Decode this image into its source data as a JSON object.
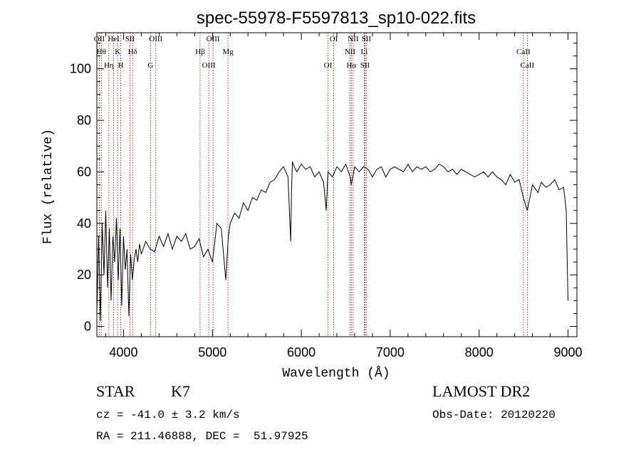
{
  "chart_data": {
    "type": "line",
    "title": "spec-55978-F5597813_sp10-022.fits",
    "xlabel": "Wavelength (Å)",
    "ylabel": "Flux (relative)",
    "xlim": [
      3700,
      9100
    ],
    "ylim": [
      -4,
      114
    ],
    "x_ticks": [
      4000,
      5000,
      6000,
      7000,
      8000,
      9000
    ],
    "y_ticks": [
      0,
      20,
      40,
      60,
      80,
      100
    ],
    "grid": false,
    "legend": "none",
    "line_color": "#000000",
    "marker_color": "#8b0000",
    "series": [
      {
        "x": [
          3700,
          3720,
          3740,
          3760,
          3780,
          3800,
          3820,
          3840,
          3860,
          3880,
          3900,
          3920,
          3940,
          3960,
          3980,
          4000,
          4020,
          4040,
          4060,
          4080,
          4100,
          4120,
          4140,
          4160,
          4180,
          4200,
          4250,
          4300,
          4350,
          4400,
          4450,
          4500,
          4550,
          4600,
          4650,
          4700,
          4750,
          4800,
          4850,
          4900,
          4950,
          5000,
          5050,
          5100,
          5150,
          5180,
          5200,
          5250,
          5300,
          5350,
          5400,
          5450,
          5500,
          5550,
          5600,
          5650,
          5700,
          5750,
          5800,
          5850,
          5880,
          5890,
          5900,
          5920,
          5950,
          6000,
          6050,
          6100,
          6150,
          6200,
          6250,
          6280,
          6300,
          6350,
          6400,
          6450,
          6500,
          6550,
          6563,
          6600,
          6650,
          6700,
          6750,
          6800,
          6850,
          6900,
          6950,
          7000,
          7050,
          7100,
          7150,
          7200,
          7250,
          7300,
          7350,
          7400,
          7450,
          7500,
          7550,
          7600,
          7650,
          7700,
          7750,
          7800,
          7850,
          7900,
          7950,
          8000,
          8050,
          8100,
          8150,
          8200,
          8250,
          8300,
          8350,
          8400,
          8450,
          8498,
          8542,
          8600,
          8662,
          8700,
          8750,
          8800,
          8850,
          8900,
          8950,
          8980,
          9000
        ],
        "y": [
          5,
          35,
          2,
          40,
          20,
          45,
          15,
          38,
          10,
          35,
          25,
          42,
          18,
          38,
          8,
          35,
          22,
          30,
          4,
          28,
          18,
          26,
          30,
          25,
          32,
          28,
          33,
          30,
          29,
          35,
          31,
          36,
          30,
          35,
          33,
          36,
          30,
          31,
          34,
          27,
          30,
          25,
          40,
          38,
          18,
          35,
          40,
          44,
          42,
          48,
          45,
          50,
          49,
          53,
          52,
          56,
          57,
          60,
          62,
          58,
          33,
          52,
          64,
          62,
          60,
          63,
          61,
          62,
          58,
          60,
          56,
          45,
          60,
          58,
          62,
          60,
          63,
          58,
          55,
          62,
          60,
          62,
          61,
          58,
          61,
          62,
          58,
          61,
          62,
          61,
          60,
          63,
          60,
          62,
          61,
          62,
          60,
          61,
          63,
          62,
          60,
          61,
          59,
          61,
          60,
          59,
          58,
          59,
          60,
          58,
          60,
          58,
          57,
          55,
          59,
          56,
          57,
          50,
          45,
          55,
          52,
          56,
          54,
          55,
          57,
          53,
          54,
          45,
          10
        ]
      }
    ],
    "line_markers": [
      {
        "label": "OII",
        "wavelength": 3727
      },
      {
        "label": "Hθ",
        "wavelength": 3750
      },
      {
        "label": "Hη",
        "wavelength": 3835
      },
      {
        "label": "HeI",
        "wavelength": 3889
      },
      {
        "label": "K",
        "wavelength": 3934
      },
      {
        "label": "H",
        "wavelength": 3969
      },
      {
        "label": "SII",
        "wavelength": 4072
      },
      {
        "label": "Hδ",
        "wavelength": 4102
      },
      {
        "label": "G",
        "wavelength": 4304
      },
      {
        "label": "OIII",
        "wavelength": 4363
      },
      {
        "label": "Hβ",
        "wavelength": 4861
      },
      {
        "label": "OIII",
        "wavelength": 4959
      },
      {
        "label": "OIII",
        "wavelength": 5007
      },
      {
        "label": "Mg",
        "wavelength": 5175
      },
      {
        "label": "OI",
        "wavelength": 6300
      },
      {
        "label": "OI",
        "wavelength": 6364
      },
      {
        "label": "NII",
        "wavelength": 6548
      },
      {
        "label": "Hα",
        "wavelength": 6563
      },
      {
        "label": "NII",
        "wavelength": 6583
      },
      {
        "label": "Li",
        "wavelength": 6708
      },
      {
        "label": "SII",
        "wavelength": 6716
      },
      {
        "label": "SII",
        "wavelength": 6731
      },
      {
        "label": "CaII",
        "wavelength": 8498
      },
      {
        "label": "CaII",
        "wavelength": 8542
      }
    ]
  },
  "info": {
    "object_class": "STAR",
    "subclass": "K7",
    "survey": "LAMOST DR2",
    "redshift": "cz = -41.0 ± 3.2 km/s",
    "obs_date": "Obs-Date: 20120220",
    "coords": "RA = 211.46888, DEC =  51.97925"
  }
}
